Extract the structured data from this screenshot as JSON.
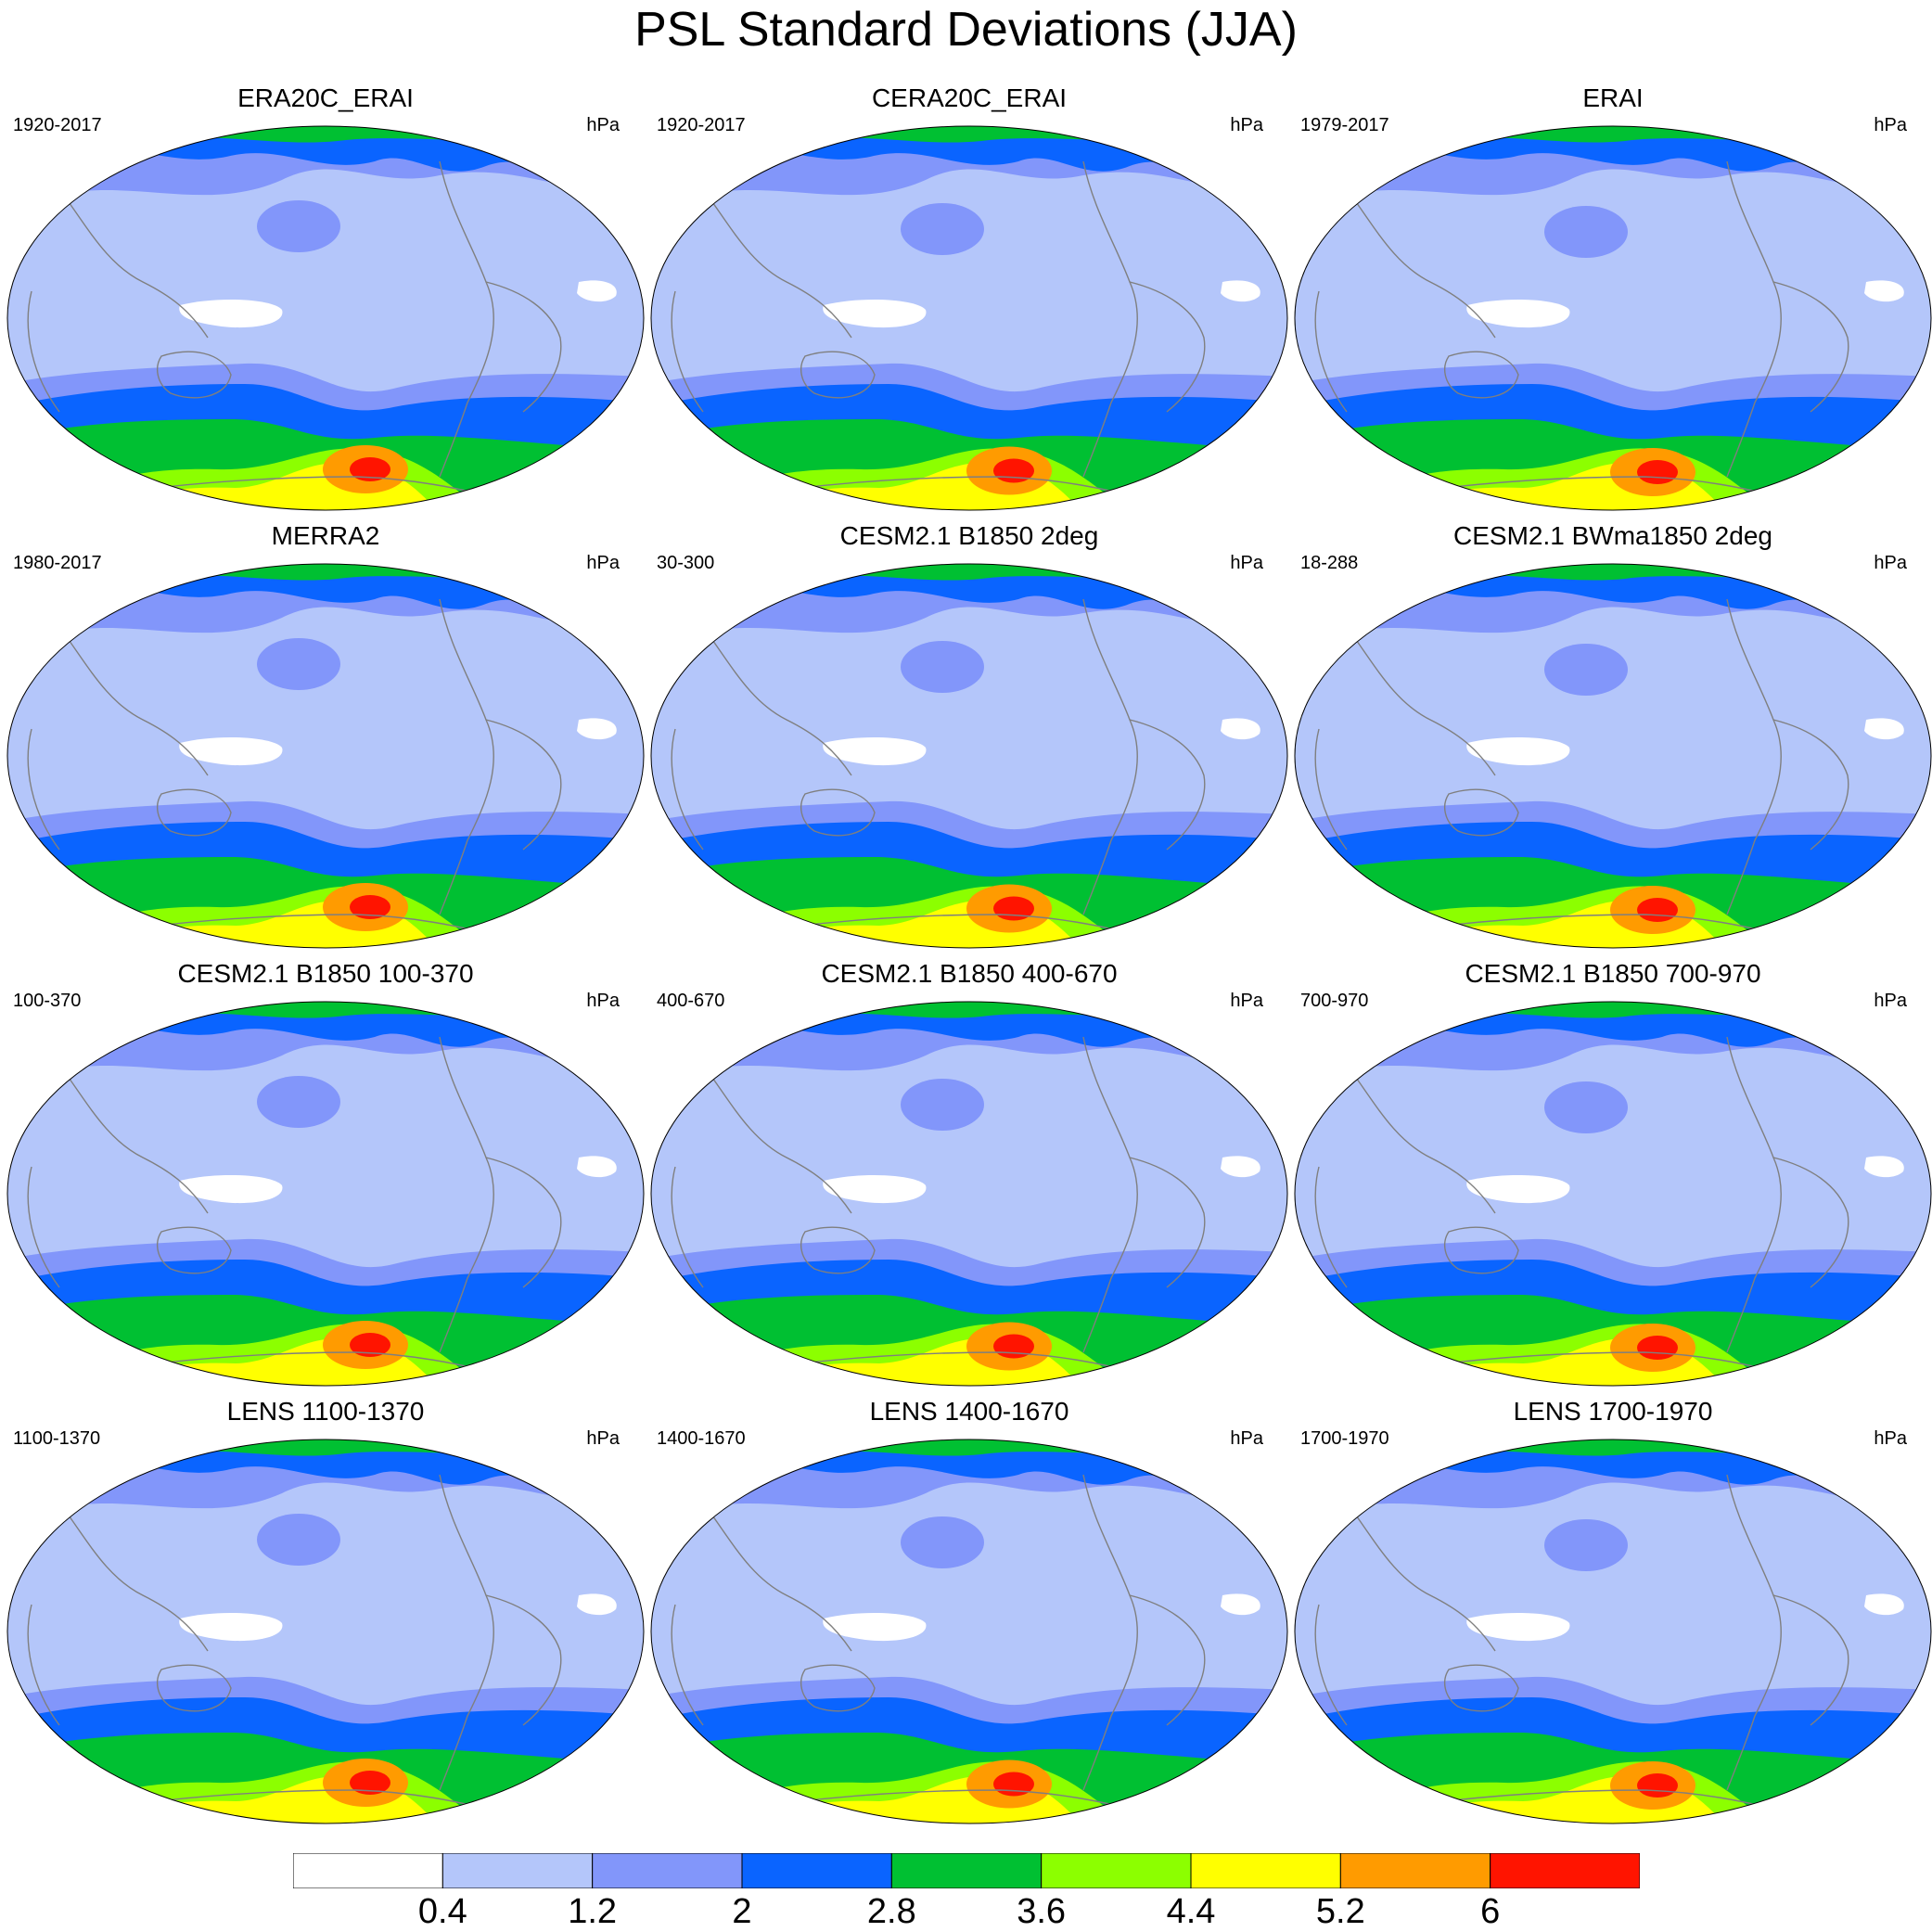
{
  "title": "PSL Standard Deviations (JJA)",
  "colorbar": {
    "colors": [
      "#ffffff",
      "#b4c6fa",
      "#8296fa",
      "#0a64ff",
      "#00c032",
      "#8cff00",
      "#ffff00",
      "#ff9b00",
      "#ff1400"
    ],
    "labels": [
      "0.4",
      "1.2",
      "2",
      "2.8",
      "3.6",
      "4.4",
      "5.2",
      "6"
    ]
  },
  "coastline_color": "#7f7f7f",
  "panels": [
    {
      "title": "ERA20C_ERAI",
      "left": "1920-2017",
      "right": "hPa"
    },
    {
      "title": "CERA20C_ERAI",
      "left": "1920-2017",
      "right": "hPa"
    },
    {
      "title": "ERAI",
      "left": "1979-2017",
      "right": "hPa"
    },
    {
      "title": "MERRA2",
      "left": "1980-2017",
      "right": "hPa"
    },
    {
      "title": "CESM2.1 B1850 2deg",
      "left": "30-300",
      "right": "hPa"
    },
    {
      "title": "CESM2.1 BWma1850 2deg",
      "left": "18-288",
      "right": "hPa"
    },
    {
      "title": "CESM2.1 B1850 100-370",
      "left": "100-370",
      "right": "hPa"
    },
    {
      "title": "CESM2.1 B1850 400-670",
      "left": "400-670",
      "right": "hPa"
    },
    {
      "title": "CESM2.1 B1850 700-970",
      "left": "700-970",
      "right": "hPa"
    },
    {
      "title": "LENS 1100-1370",
      "left": "1100-1370",
      "right": "hPa"
    },
    {
      "title": "LENS 1400-1670",
      "left": "1400-1670",
      "right": "hPa"
    },
    {
      "title": "LENS 1700-1970",
      "left": "1700-1970",
      "right": "hPa"
    }
  ]
}
